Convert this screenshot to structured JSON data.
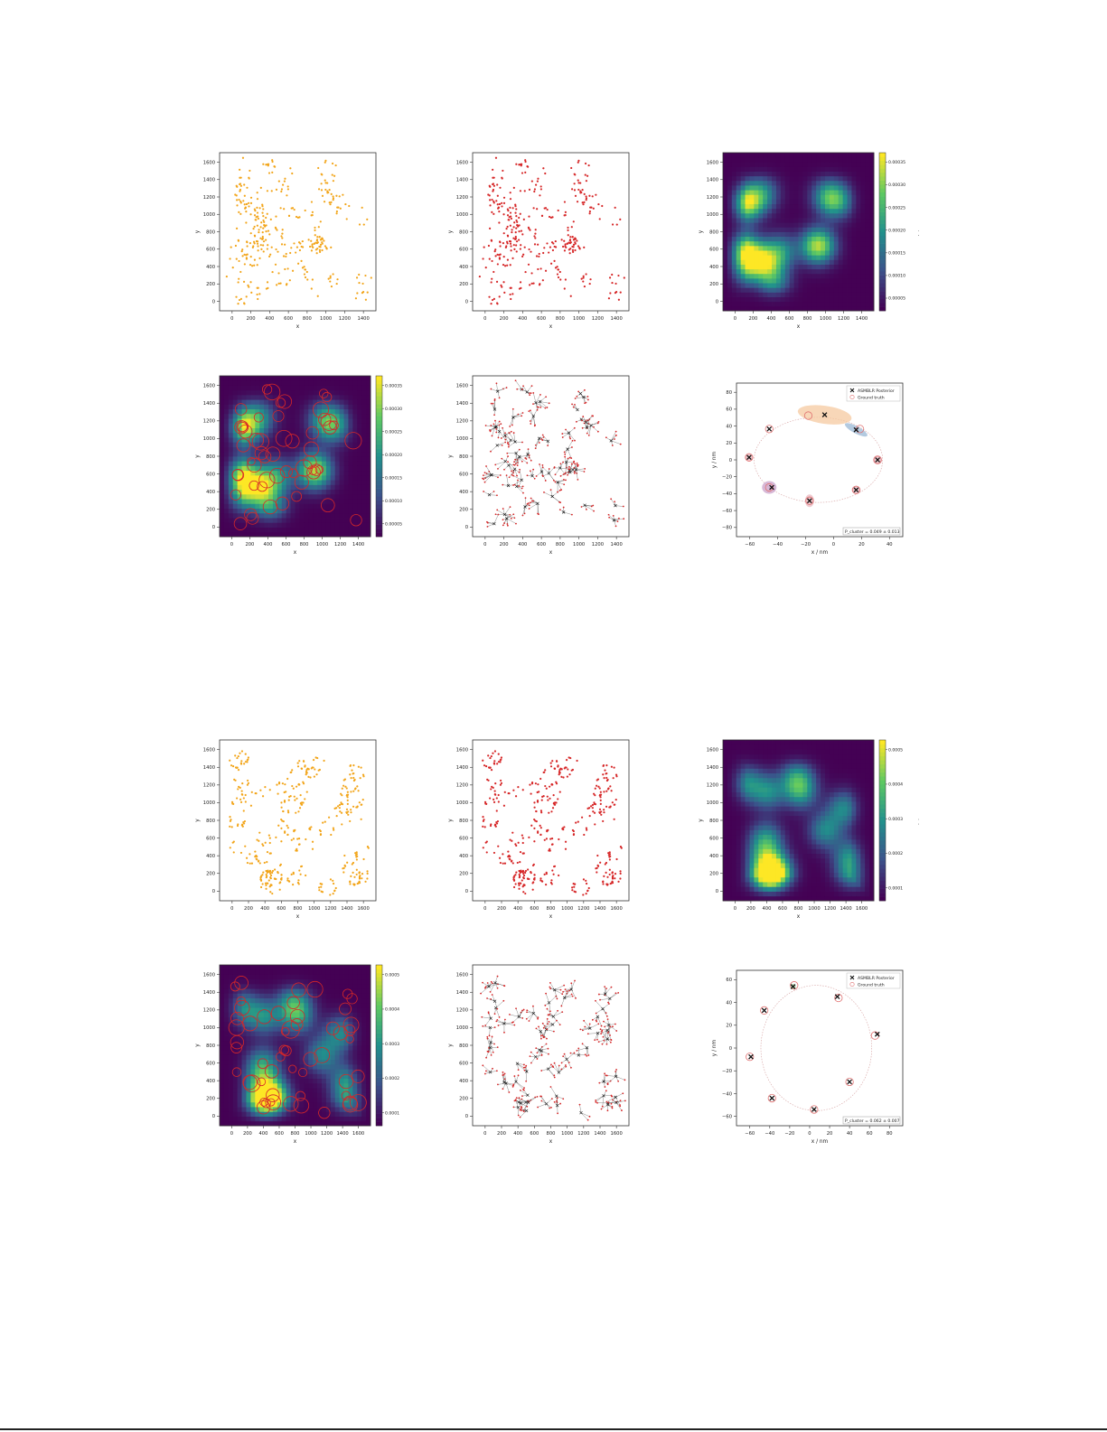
{
  "page": {
    "background": "#ffffff"
  },
  "colors": {
    "orange": "#f2a51a",
    "red": "#d62728",
    "viridis": [
      "#440154",
      "#3b528b",
      "#21918c",
      "#5ec962",
      "#fde725"
    ],
    "posterior_blue": "#9ab8d6",
    "posterior_orange": "#f6c9a0",
    "posterior_purple": "#c9a0c9",
    "posterior_pink": "#e9b8c0"
  },
  "chart_data": [
    {
      "id": "A1",
      "type": "scatter",
      "xlabel": "x",
      "ylabel": "y",
      "xlim": [
        -100,
        1550
      ],
      "ylim": [
        -50,
        1620
      ],
      "xticks": [
        "0",
        "200",
        "400",
        "600",
        "800",
        "1000",
        "1200",
        "1400"
      ],
      "yticks": [
        "0",
        "200",
        "400",
        "600",
        "800",
        "1000",
        "1200",
        "1400",
        "1600"
      ],
      "marker_color": "#f2a51a",
      "point_count": 360,
      "seed": 11,
      "note_points": "dense scattered localisations across domain"
    },
    {
      "id": "A2",
      "type": "scatter",
      "xlabel": "x",
      "ylabel": "y",
      "xlim": [
        -100,
        1550
      ],
      "ylim": [
        -50,
        1620
      ],
      "xticks": [
        "0",
        "200",
        "400",
        "600",
        "800",
        "1000",
        "1200",
        "1400"
      ],
      "yticks": [
        "0",
        "200",
        "400",
        "600",
        "800",
        "1000",
        "1200",
        "1400",
        "1600"
      ],
      "marker_color": "#d62728",
      "point_count": 360,
      "seed": 11
    },
    {
      "id": "A3",
      "type": "heatmap",
      "xlabel": "x",
      "ylabel": "y",
      "colorbar_label": "λ(u)",
      "colorbar_ticks": [
        "0.00005",
        "0.00010",
        "0.00015",
        "0.00020",
        "0.00025",
        "0.00030",
        "0.00035"
      ],
      "xticks": [
        "0",
        "200",
        "400",
        "600",
        "800",
        "1000",
        "1200",
        "1400"
      ],
      "yticks": [
        "0",
        "200",
        "400",
        "600",
        "800",
        "1000",
        "1200",
        "1400",
        "1600"
      ],
      "seed": 11
    },
    {
      "id": "A4",
      "type": "heatmap",
      "xlabel": "x",
      "ylabel": "y",
      "colorbar_label": "λ",
      "colorbar_ticks": [
        "0.00005",
        "0.00010",
        "0.00015",
        "0.00020",
        "0.00025",
        "0.00030",
        "0.00035"
      ],
      "xticks": [
        "0",
        "200",
        "400",
        "600",
        "800",
        "1000",
        "1200",
        "1400"
      ],
      "yticks": [
        "0",
        "200",
        "400",
        "600",
        "800",
        "1000",
        "1200",
        "1400",
        "1600"
      ],
      "overlay": "red cluster circles",
      "seed": 11
    },
    {
      "id": "A5",
      "type": "scatter",
      "xlabel": "x",
      "ylabel": "y",
      "xticks": [
        "0",
        "200",
        "400",
        "600",
        "800",
        "1000",
        "1200",
        "1400"
      ],
      "yticks": [
        "0",
        "200",
        "400",
        "600",
        "800",
        "1000",
        "1200",
        "1400",
        "1600"
      ],
      "overlay": "cluster assignment lines with black crosses",
      "seed": 11
    },
    {
      "id": "A6",
      "type": "scatter",
      "xlabel": "x / nm",
      "ylabel": "y / nm",
      "xlim": [
        -70,
        62
      ],
      "ylim": [
        -92,
        92
      ],
      "xticks": [
        "−60",
        "−40",
        "−20",
        "0",
        "20",
        "40"
      ],
      "yticks": [
        "−80",
        "−60",
        "−40",
        "−20",
        "0",
        "20",
        "40",
        "60",
        "80"
      ],
      "legend": [
        "ASMBLR Posterior",
        "Ground truth"
      ],
      "legend_position": "top-right",
      "annotation": "P_cluster = 0.049 ± 0.013",
      "circle": {
        "cx": -5,
        "cy": 0,
        "r": 51
      },
      "ground_truth": [
        [
          -13,
          53
        ],
        [
          -44,
          37
        ],
        [
          -60,
          3
        ],
        [
          -44,
          -33
        ],
        [
          -12,
          -49
        ],
        [
          25,
          -36
        ],
        [
          42,
          0
        ],
        [
          28,
          37
        ]
      ],
      "posterior": [
        [
          0,
          54
        ],
        [
          -44,
          37
        ],
        [
          -60,
          3
        ],
        [
          -42,
          -33
        ],
        [
          -12,
          -49
        ],
        [
          25,
          -36
        ],
        [
          42,
          0
        ],
        [
          25,
          36
        ]
      ]
    },
    {
      "id": "B1",
      "type": "scatter",
      "xlabel": "x",
      "ylabel": "y",
      "xlim": [
        -100,
        1620
      ],
      "ylim": [
        -50,
        1620
      ],
      "xticks": [
        "0",
        "200",
        "400",
        "600",
        "800",
        "1000",
        "1200",
        "1400",
        "1600"
      ],
      "yticks": [
        "0",
        "200",
        "400",
        "600",
        "800",
        "1000",
        "1200",
        "1400",
        "1600"
      ],
      "marker_color": "#f2a51a",
      "point_count": 420,
      "seed": 23,
      "note_points": "ring-shaped clusters of localisations"
    },
    {
      "id": "B2",
      "type": "scatter",
      "xlabel": "x",
      "ylabel": "y",
      "xticks": [
        "0",
        "200",
        "400",
        "600",
        "800",
        "1000",
        "1200",
        "1400",
        "1600"
      ],
      "yticks": [
        "0",
        "200",
        "400",
        "600",
        "800",
        "1000",
        "1200",
        "1400",
        "1600"
      ],
      "marker_color": "#d62728",
      "point_count": 420,
      "seed": 23
    },
    {
      "id": "B3",
      "type": "heatmap",
      "xlabel": "x",
      "ylabel": "y",
      "colorbar_label": "λ(u)",
      "colorbar_ticks": [
        "0.0001",
        "0.0002",
        "0.0003",
        "0.0004",
        "0.0005"
      ],
      "xticks": [
        "0",
        "200",
        "400",
        "600",
        "800",
        "1000",
        "1200",
        "1400",
        "1600"
      ],
      "yticks": [
        "0",
        "200",
        "400",
        "600",
        "800",
        "1000",
        "1200",
        "1400",
        "1600"
      ],
      "seed": 23
    },
    {
      "id": "B4",
      "type": "heatmap",
      "xlabel": "x",
      "ylabel": "y",
      "colorbar_label": "λ",
      "colorbar_ticks": [
        "0.0001",
        "0.0002",
        "0.0003",
        "0.0004",
        "0.0005"
      ],
      "xticks": [
        "0",
        "200",
        "400",
        "600",
        "800",
        "1000",
        "1200",
        "1400",
        "1600"
      ],
      "yticks": [
        "0",
        "200",
        "400",
        "600",
        "800",
        "1000",
        "1200",
        "1400",
        "1600"
      ],
      "overlay": "red cluster circles",
      "seed": 23
    },
    {
      "id": "B5",
      "type": "scatter",
      "xlabel": "x",
      "ylabel": "y",
      "xticks": [
        "0",
        "200",
        "400",
        "600",
        "800",
        "1000",
        "1200",
        "1400",
        "1600"
      ],
      "yticks": [
        "0",
        "200",
        "400",
        "600",
        "800",
        "1000",
        "1200",
        "1400",
        "1600"
      ],
      "overlay": "cluster assignment lines with black crosses",
      "seed": 23
    },
    {
      "id": "B6",
      "type": "scatter",
      "xlabel": "x / nm",
      "ylabel": "y / nm",
      "xlim": [
        -62,
        88
      ],
      "ylim": [
        -62,
        62
      ],
      "xticks": [
        "−60",
        "−40",
        "−20",
        "0",
        "20",
        "40",
        "60",
        "80"
      ],
      "yticks": [
        "−60",
        "−40",
        "−20",
        "0",
        "20",
        "40",
        "60"
      ],
      "legend": [
        "ASMBLR Posterior",
        "Ground truth"
      ],
      "legend_position": "top-right",
      "annotation": "P_cluster = 0.062 ± 0.007",
      "circle": {
        "cx": 10,
        "cy": 0,
        "r": 50
      },
      "ground_truth": [
        [
          -10,
          50
        ],
        [
          -37,
          30
        ],
        [
          -50,
          -7
        ],
        [
          -30,
          -40
        ],
        [
          8,
          -49
        ],
        [
          40,
          -27
        ],
        [
          63,
          10
        ],
        [
          30,
          40
        ]
      ],
      "posterior": [
        [
          -11,
          49
        ],
        [
          -37,
          30
        ],
        [
          -49,
          -7
        ],
        [
          -30,
          -40
        ],
        [
          8,
          -49
        ],
        [
          40,
          -27
        ],
        [
          65,
          11
        ],
        [
          29,
          41
        ]
      ]
    }
  ]
}
